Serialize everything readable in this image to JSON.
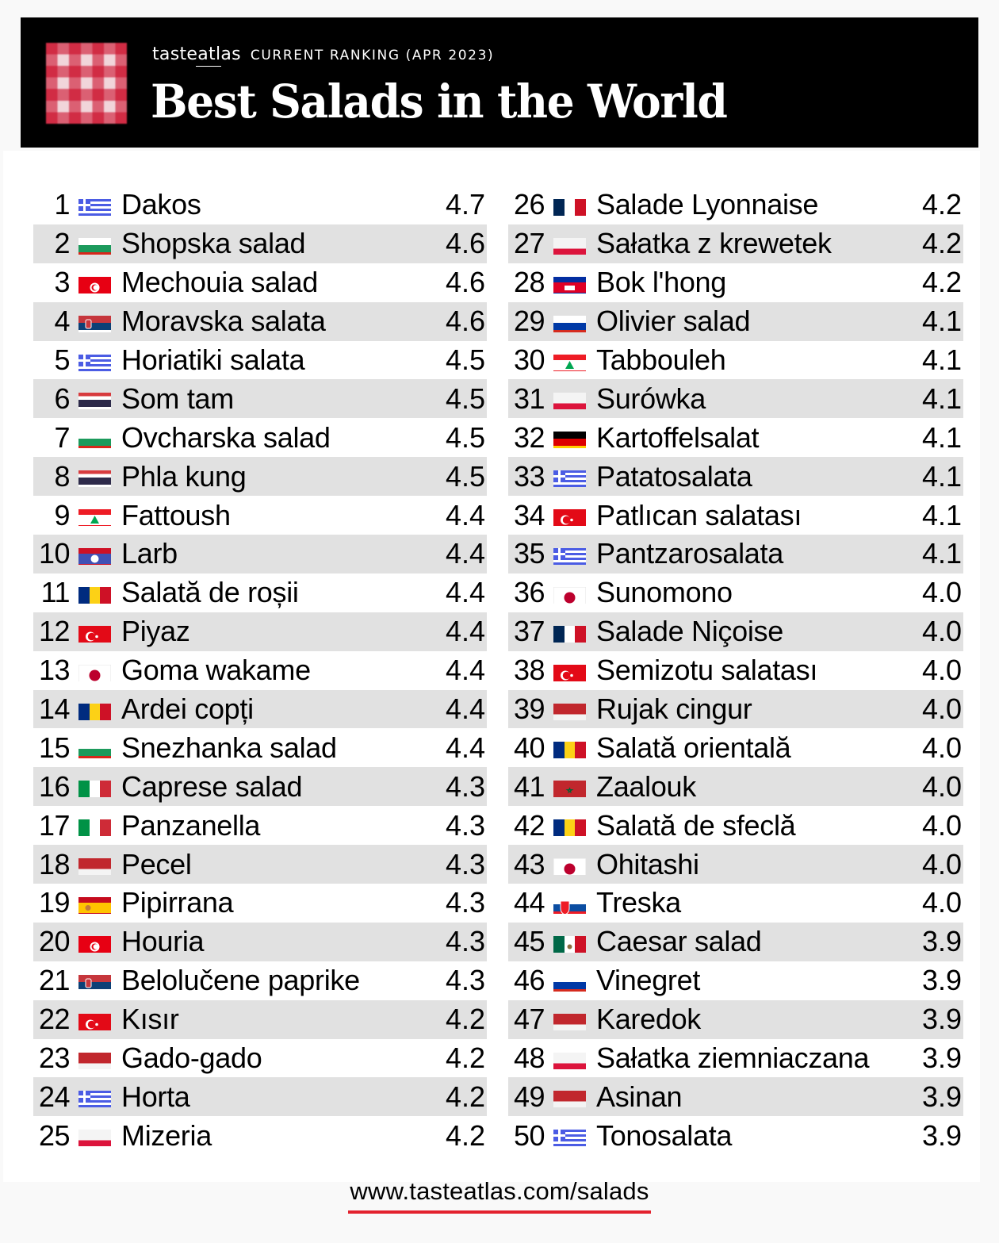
{
  "header": {
    "brand": "tasteatlas",
    "ranking_label": "CURRENT RANKING (APR 2023)",
    "title": "Best Salads in the World",
    "icon": "gingham-tablecloth-icon"
  },
  "colors": {
    "header_bg": "#000000",
    "row_alt_bg": "#e1e1e1",
    "accent": "#e3222e"
  },
  "rankings": {
    "left": [
      {
        "rank": "1",
        "flag": "greece",
        "name": "Dakos",
        "score": "4.7"
      },
      {
        "rank": "2",
        "flag": "bulgaria",
        "name": "Shopska salad",
        "score": "4.6"
      },
      {
        "rank": "3",
        "flag": "tunisia",
        "name": "Mechouia salad",
        "score": "4.6"
      },
      {
        "rank": "4",
        "flag": "serbia",
        "name": "Moravska salata",
        "score": "4.6"
      },
      {
        "rank": "5",
        "flag": "greece",
        "name": "Horiatiki salata",
        "score": "4.5"
      },
      {
        "rank": "6",
        "flag": "thailand",
        "name": "Som tam",
        "score": "4.5"
      },
      {
        "rank": "7",
        "flag": "bulgaria",
        "name": "Ovcharska salad",
        "score": "4.5"
      },
      {
        "rank": "8",
        "flag": "thailand",
        "name": "Phla kung",
        "score": "4.5"
      },
      {
        "rank": "9",
        "flag": "lebanon",
        "name": "Fattoush",
        "score": "4.4"
      },
      {
        "rank": "10",
        "flag": "laos",
        "name": "Larb",
        "score": "4.4"
      },
      {
        "rank": "11",
        "flag": "romania",
        "name": "Salată de roșii",
        "score": "4.4"
      },
      {
        "rank": "12",
        "flag": "turkey",
        "name": "Piyaz",
        "score": "4.4"
      },
      {
        "rank": "13",
        "flag": "japan",
        "name": "Goma wakame",
        "score": "4.4"
      },
      {
        "rank": "14",
        "flag": "romania",
        "name": "Ardei copți",
        "score": "4.4"
      },
      {
        "rank": "15",
        "flag": "bulgaria",
        "name": "Snezhanka salad",
        "score": "4.4"
      },
      {
        "rank": "16",
        "flag": "italy",
        "name": "Caprese salad",
        "score": "4.3"
      },
      {
        "rank": "17",
        "flag": "italy",
        "name": "Panzanella",
        "score": "4.3"
      },
      {
        "rank": "18",
        "flag": "indonesia",
        "name": "Pecel",
        "score": "4.3"
      },
      {
        "rank": "19",
        "flag": "spain",
        "name": "Pipirrana",
        "score": "4.3"
      },
      {
        "rank": "20",
        "flag": "tunisia",
        "name": "Houria",
        "score": "4.3"
      },
      {
        "rank": "21",
        "flag": "serbia",
        "name": "Belolučene paprike",
        "score": "4.3"
      },
      {
        "rank": "22",
        "flag": "turkey",
        "name": "Kısır",
        "score": "4.2"
      },
      {
        "rank": "23",
        "flag": "indonesia",
        "name": "Gado-gado",
        "score": "4.2"
      },
      {
        "rank": "24",
        "flag": "greece",
        "name": "Horta",
        "score": "4.2"
      },
      {
        "rank": "25",
        "flag": "poland",
        "name": "Mizeria",
        "score": "4.2"
      }
    ],
    "right": [
      {
        "rank": "26",
        "flag": "france",
        "name": "Salade Lyonnaise",
        "score": "4.2"
      },
      {
        "rank": "27",
        "flag": "poland",
        "name": "Sałatka z krewetek",
        "score": "4.2"
      },
      {
        "rank": "28",
        "flag": "cambodia",
        "name": "Bok l'hong",
        "score": "4.2"
      },
      {
        "rank": "29",
        "flag": "russia",
        "name": "Olivier salad",
        "score": "4.1"
      },
      {
        "rank": "30",
        "flag": "lebanon",
        "name": "Tabbouleh",
        "score": "4.1"
      },
      {
        "rank": "31",
        "flag": "poland",
        "name": "Surówka",
        "score": "4.1"
      },
      {
        "rank": "32",
        "flag": "germany",
        "name": "Kartoffelsalat",
        "score": "4.1"
      },
      {
        "rank": "33",
        "flag": "greece",
        "name": "Patatosalata",
        "score": "4.1"
      },
      {
        "rank": "34",
        "flag": "turkey",
        "name": "Patlıcan salatası",
        "score": "4.1"
      },
      {
        "rank": "35",
        "flag": "greece",
        "name": "Pantzarosalata",
        "score": "4.1"
      },
      {
        "rank": "36",
        "flag": "japan",
        "name": "Sunomono",
        "score": "4.0"
      },
      {
        "rank": "37",
        "flag": "france",
        "name": "Salade Niçoise",
        "score": "4.0"
      },
      {
        "rank": "38",
        "flag": "turkey",
        "name": "Semizotu salatası",
        "score": "4.0"
      },
      {
        "rank": "39",
        "flag": "indonesia",
        "name": "Rujak cingur",
        "score": "4.0"
      },
      {
        "rank": "40",
        "flag": "romania",
        "name": "Salată orientală",
        "score": "4.0"
      },
      {
        "rank": "41",
        "flag": "morocco",
        "name": "Zaalouk",
        "score": "4.0"
      },
      {
        "rank": "42",
        "flag": "romania",
        "name": "Salată de sfeclă",
        "score": "4.0"
      },
      {
        "rank": "43",
        "flag": "japan",
        "name": "Ohitashi",
        "score": "4.0"
      },
      {
        "rank": "44",
        "flag": "slovakia",
        "name": "Treska",
        "score": "4.0"
      },
      {
        "rank": "45",
        "flag": "mexico",
        "name": "Caesar salad",
        "score": "3.9"
      },
      {
        "rank": "46",
        "flag": "russia",
        "name": "Vinegret",
        "score": "3.9"
      },
      {
        "rank": "47",
        "flag": "indonesia",
        "name": "Karedok",
        "score": "3.9"
      },
      {
        "rank": "48",
        "flag": "poland",
        "name": "Sałatka ziemniaczana",
        "score": "3.9"
      },
      {
        "rank": "49",
        "flag": "indonesia",
        "name": "Asinan",
        "score": "3.9"
      },
      {
        "rank": "50",
        "flag": "greece",
        "name": "Tonosalata",
        "score": "3.9"
      }
    ]
  },
  "footer": {
    "url": "www.tasteatlas.com/salads"
  }
}
